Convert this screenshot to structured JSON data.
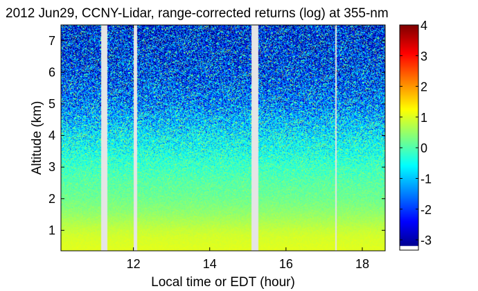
{
  "chart_data": {
    "type": "heatmap",
    "title": "2012 Jun29, CCNY-Lidar, range-corrected returns (log) at 355-nm",
    "xlabel": "Local time or EDT (hour)",
    "ylabel": "Altitude (km)",
    "xlim": [
      10.1,
      18.6
    ],
    "ylim": [
      0.35,
      7.5
    ],
    "x_ticks": [
      12,
      14,
      16,
      18
    ],
    "y_ticks": [
      1,
      2,
      3,
      4,
      5,
      6,
      7
    ],
    "colorbar": {
      "min": -3.2,
      "max": 4,
      "ticks": [
        -3,
        -2,
        -1,
        0,
        1,
        2,
        3,
        4
      ],
      "colormap": "jet",
      "nan_color": "#ffffff"
    },
    "data_gaps_hours": [
      [
        11.15,
        11.32
      ],
      [
        12.0,
        12.1
      ],
      [
        15.1,
        15.28
      ],
      [
        17.29,
        17.32
      ]
    ],
    "profile": {
      "altitude_km": [
        0.35,
        0.8,
        1.0,
        1.3,
        1.6,
        2.0,
        2.5,
        3.0,
        3.5,
        4.0,
        4.5,
        5.0,
        6.0,
        7.5
      ],
      "mean_log_return": [
        1.1,
        1.0,
        0.9,
        0.7,
        0.5,
        0.3,
        0.15,
        -0.05,
        -0.3,
        -0.55,
        -0.9,
        -1.3,
        -1.8,
        -2.2
      ],
      "noise_spread": [
        0.05,
        0.08,
        0.1,
        0.12,
        0.15,
        0.2,
        0.3,
        0.45,
        0.7,
        0.95,
        1.2,
        1.5,
        1.9,
        2.2
      ]
    },
    "grid": false
  }
}
